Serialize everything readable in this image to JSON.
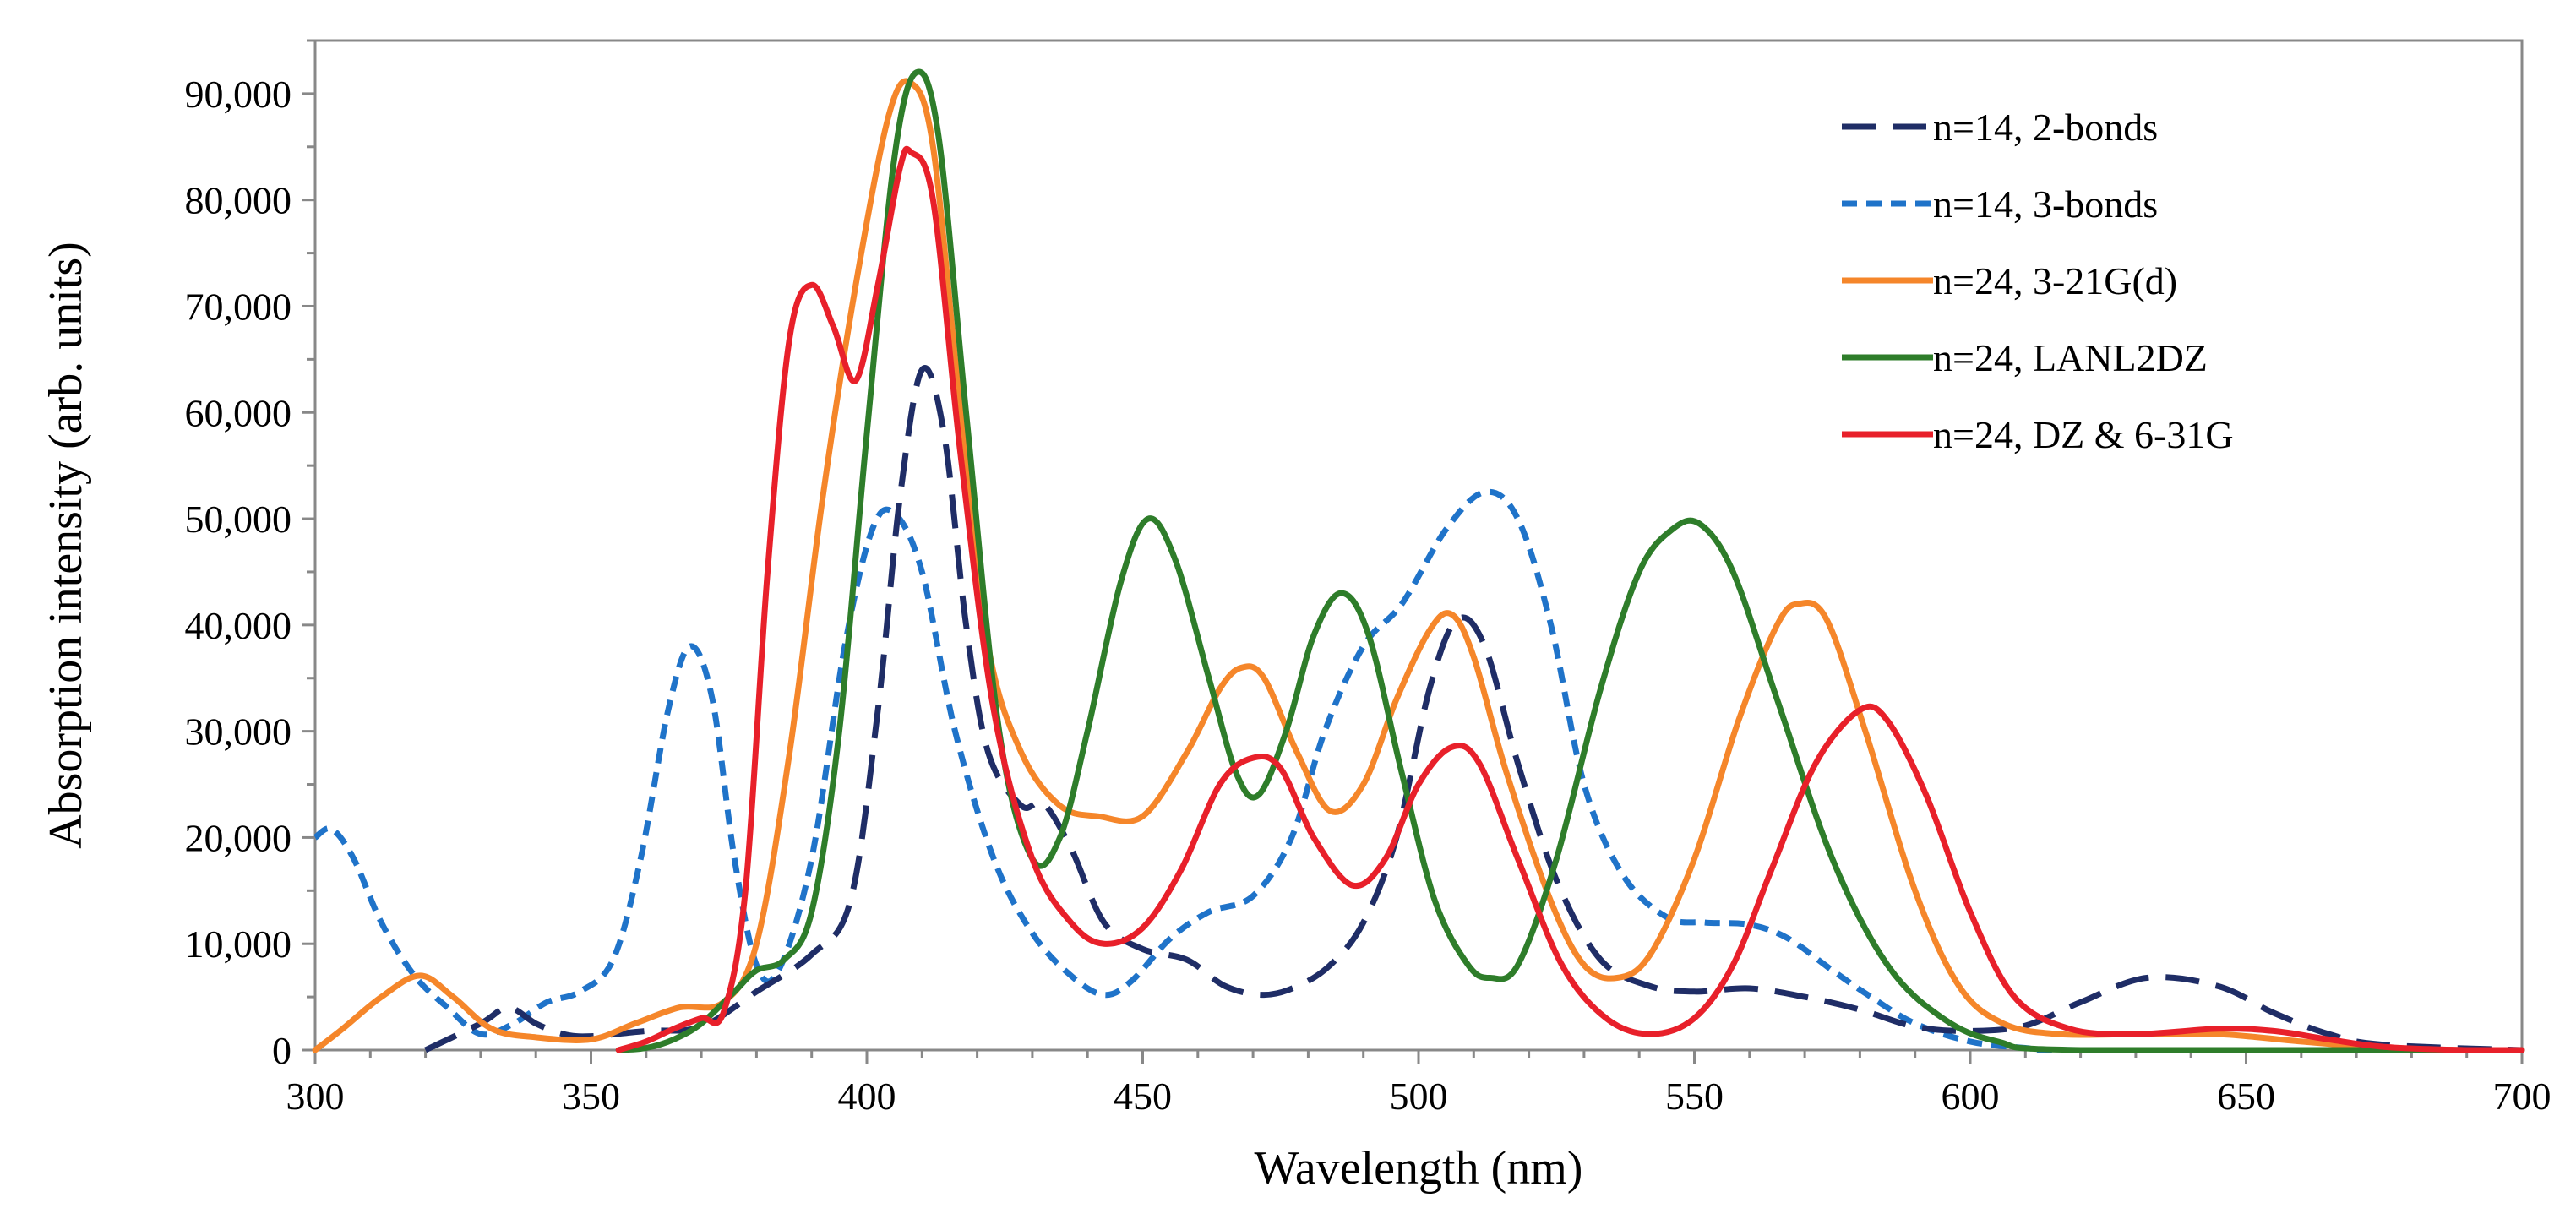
{
  "chart_data": {
    "type": "line",
    "title": "",
    "xlabel": "Wavelength (nm)",
    "ylabel": "Absorption intensity (arb. units)",
    "xlim": [
      300,
      700
    ],
    "ylim": [
      0,
      95000
    ],
    "xticks": [
      300,
      350,
      400,
      450,
      500,
      550,
      600,
      650,
      700
    ],
    "xtick_labels": [
      "300",
      "350",
      "400",
      "450",
      "500",
      "550",
      "600",
      "650",
      "700"
    ],
    "yticks": [
      0,
      10000,
      20000,
      30000,
      40000,
      50000,
      60000,
      70000,
      80000,
      90000
    ],
    "ytick_labels": [
      "0",
      "10,000",
      "20,000",
      "30,000",
      "40,000",
      "50,000",
      "60,000",
      "70,000",
      "80,000",
      "90,000"
    ],
    "grid": false,
    "legend_position": "top-right",
    "series": [
      {
        "name": "n=14, 2-bonds",
        "color": "#1f2d66",
        "style": "long-dash",
        "points": [
          [
            320,
            0
          ],
          [
            330,
            2500
          ],
          [
            335,
            4000
          ],
          [
            340,
            2500
          ],
          [
            345,
            1500
          ],
          [
            350,
            1300
          ],
          [
            360,
            1800
          ],
          [
            370,
            2200
          ],
          [
            380,
            5500
          ],
          [
            390,
            9000
          ],
          [
            397,
            14000
          ],
          [
            402,
            32000
          ],
          [
            406,
            52000
          ],
          [
            410,
            64000
          ],
          [
            414,
            58000
          ],
          [
            418,
            40000
          ],
          [
            422,
            28000
          ],
          [
            428,
            23000
          ],
          [
            432,
            23200
          ],
          [
            437,
            19000
          ],
          [
            443,
            12000
          ],
          [
            450,
            9500
          ],
          [
            458,
            8500
          ],
          [
            465,
            6000
          ],
          [
            472,
            5200
          ],
          [
            478,
            6000
          ],
          [
            484,
            8000
          ],
          [
            490,
            12000
          ],
          [
            496,
            20000
          ],
          [
            502,
            34000
          ],
          [
            507,
            40500
          ],
          [
            512,
            38000
          ],
          [
            518,
            27000
          ],
          [
            525,
            16000
          ],
          [
            533,
            8500
          ],
          [
            542,
            6000
          ],
          [
            550,
            5500
          ],
          [
            560,
            5800
          ],
          [
            570,
            5000
          ],
          [
            580,
            3800
          ],
          [
            590,
            2200
          ],
          [
            600,
            1800
          ],
          [
            610,
            2300
          ],
          [
            620,
            4500
          ],
          [
            632,
            6800
          ],
          [
            645,
            6000
          ],
          [
            655,
            3500
          ],
          [
            665,
            1500
          ],
          [
            675,
            500
          ],
          [
            700,
            0
          ]
        ]
      },
      {
        "name": "n=14, 3-bonds",
        "color": "#1f73c9",
        "style": "short-dash",
        "points": [
          [
            300,
            20000
          ],
          [
            303,
            20800
          ],
          [
            307,
            18000
          ],
          [
            312,
            12000
          ],
          [
            318,
            7000
          ],
          [
            324,
            4000
          ],
          [
            330,
            1500
          ],
          [
            336,
            2500
          ],
          [
            342,
            4500
          ],
          [
            348,
            5500
          ],
          [
            354,
            8500
          ],
          [
            359,
            18000
          ],
          [
            364,
            32000
          ],
          [
            368,
            38000
          ],
          [
            372,
            33000
          ],
          [
            376,
            18000
          ],
          [
            380,
            8000
          ],
          [
            384,
            7500
          ],
          [
            390,
            18000
          ],
          [
            396,
            38000
          ],
          [
            401,
            49000
          ],
          [
            405,
            50500
          ],
          [
            410,
            45000
          ],
          [
            416,
            30000
          ],
          [
            423,
            18000
          ],
          [
            430,
            11000
          ],
          [
            437,
            7000
          ],
          [
            443,
            5200
          ],
          [
            448,
            6500
          ],
          [
            455,
            10500
          ],
          [
            462,
            13000
          ],
          [
            470,
            14500
          ],
          [
            477,
            20000
          ],
          [
            483,
            30000
          ],
          [
            490,
            38000
          ],
          [
            497,
            42000
          ],
          [
            505,
            49000
          ],
          [
            512,
            52500
          ],
          [
            518,
            50000
          ],
          [
            524,
            40000
          ],
          [
            530,
            25000
          ],
          [
            537,
            16500
          ],
          [
            545,
            12500
          ],
          [
            552,
            12000
          ],
          [
            560,
            11800
          ],
          [
            567,
            10500
          ],
          [
            575,
            7500
          ],
          [
            582,
            5000
          ],
          [
            590,
            2500
          ],
          [
            600,
            800
          ],
          [
            610,
            200
          ],
          [
            620,
            0
          ],
          [
            700,
            0
          ]
        ]
      },
      {
        "name": "n=24, 3-21G(d)",
        "color": "#f5862a",
        "style": "solid",
        "points": [
          [
            300,
            0
          ],
          [
            305,
            2000
          ],
          [
            312,
            5000
          ],
          [
            319,
            7000
          ],
          [
            325,
            5000
          ],
          [
            332,
            2000
          ],
          [
            340,
            1200
          ],
          [
            350,
            1000
          ],
          [
            358,
            2500
          ],
          [
            366,
            4000
          ],
          [
            374,
            4500
          ],
          [
            380,
            10000
          ],
          [
            386,
            28000
          ],
          [
            392,
            52000
          ],
          [
            398,
            72000
          ],
          [
            404,
            88000
          ],
          [
            408,
            91000
          ],
          [
            412,
            85000
          ],
          [
            417,
            60000
          ],
          [
            422,
            38000
          ],
          [
            428,
            28000
          ],
          [
            435,
            23000
          ],
          [
            442,
            22000
          ],
          [
            450,
            22000
          ],
          [
            458,
            28000
          ],
          [
            464,
            34000
          ],
          [
            468,
            36000
          ],
          [
            472,
            35000
          ],
          [
            478,
            28000
          ],
          [
            484,
            22500
          ],
          [
            490,
            25000
          ],
          [
            496,
            33000
          ],
          [
            502,
            39500
          ],
          [
            506,
            41000
          ],
          [
            510,
            37000
          ],
          [
            516,
            26000
          ],
          [
            524,
            14000
          ],
          [
            530,
            8000
          ],
          [
            536,
            6800
          ],
          [
            542,
            9000
          ],
          [
            550,
            18000
          ],
          [
            558,
            31000
          ],
          [
            565,
            40000
          ],
          [
            569,
            42000
          ],
          [
            574,
            40500
          ],
          [
            581,
            30000
          ],
          [
            590,
            15000
          ],
          [
            598,
            6000
          ],
          [
            606,
            2500
          ],
          [
            616,
            1500
          ],
          [
            630,
            1500
          ],
          [
            645,
            1500
          ],
          [
            660,
            800
          ],
          [
            675,
            200
          ],
          [
            690,
            0
          ],
          [
            700,
            0
          ]
        ]
      },
      {
        "name": "n=24, LANL2DZ",
        "color": "#2e7d2a",
        "style": "solid",
        "points": [
          [
            355,
            0
          ],
          [
            360,
            200
          ],
          [
            365,
            1000
          ],
          [
            370,
            2500
          ],
          [
            376,
            5500
          ],
          [
            380,
            7500
          ],
          [
            385,
            8500
          ],
          [
            390,
            13000
          ],
          [
            395,
            30000
          ],
          [
            400,
            58000
          ],
          [
            405,
            84000
          ],
          [
            409,
            92000
          ],
          [
            413,
            86000
          ],
          [
            418,
            60000
          ],
          [
            424,
            30000
          ],
          [
            430,
            18000
          ],
          [
            435,
            20000
          ],
          [
            440,
            30000
          ],
          [
            446,
            44000
          ],
          [
            451,
            50000
          ],
          [
            456,
            46000
          ],
          [
            462,
            35000
          ],
          [
            467,
            26000
          ],
          [
            471,
            24000
          ],
          [
            476,
            30000
          ],
          [
            481,
            39000
          ],
          [
            486,
            43000
          ],
          [
            491,
            39000
          ],
          [
            497,
            26000
          ],
          [
            503,
            14000
          ],
          [
            509,
            8000
          ],
          [
            513,
            6800
          ],
          [
            518,
            8000
          ],
          [
            525,
            18000
          ],
          [
            533,
            34000
          ],
          [
            540,
            45000
          ],
          [
            546,
            49000
          ],
          [
            551,
            49500
          ],
          [
            557,
            45000
          ],
          [
            565,
            33000
          ],
          [
            575,
            18000
          ],
          [
            585,
            8000
          ],
          [
            595,
            3000
          ],
          [
            605,
            800
          ],
          [
            620,
            0
          ],
          [
            700,
            0
          ]
        ]
      },
      {
        "name": "n=24, DZ & 6-31G",
        "color": "#e8202a",
        "style": "solid",
        "points": [
          [
            355,
            0
          ],
          [
            360,
            800
          ],
          [
            365,
            2000
          ],
          [
            370,
            3000
          ],
          [
            374,
            3500
          ],
          [
            378,
            15000
          ],
          [
            382,
            45000
          ],
          [
            386,
            67000
          ],
          [
            390,
            72000
          ],
          [
            394,
            68000
          ],
          [
            398,
            63000
          ],
          [
            402,
            72000
          ],
          [
            406,
            83000
          ],
          [
            408,
            84500
          ],
          [
            412,
            80000
          ],
          [
            417,
            56000
          ],
          [
            423,
            32000
          ],
          [
            430,
            18000
          ],
          [
            437,
            12000
          ],
          [
            443,
            10000
          ],
          [
            450,
            11500
          ],
          [
            457,
            17000
          ],
          [
            464,
            25000
          ],
          [
            470,
            27500
          ],
          [
            475,
            26500
          ],
          [
            481,
            20000
          ],
          [
            488,
            15500
          ],
          [
            494,
            18000
          ],
          [
            500,
            25000
          ],
          [
            506,
            28500
          ],
          [
            511,
            27000
          ],
          [
            518,
            18000
          ],
          [
            526,
            8000
          ],
          [
            534,
            3000
          ],
          [
            542,
            1500
          ],
          [
            550,
            3000
          ],
          [
            557,
            8000
          ],
          [
            564,
            17000
          ],
          [
            572,
            27000
          ],
          [
            580,
            32000
          ],
          [
            585,
            31000
          ],
          [
            592,
            24000
          ],
          [
            600,
            13000
          ],
          [
            608,
            5000
          ],
          [
            618,
            2000
          ],
          [
            630,
            1500
          ],
          [
            645,
            2000
          ],
          [
            655,
            1800
          ],
          [
            665,
            1000
          ],
          [
            675,
            300
          ],
          [
            690,
            0
          ],
          [
            700,
            0
          ]
        ]
      }
    ]
  }
}
